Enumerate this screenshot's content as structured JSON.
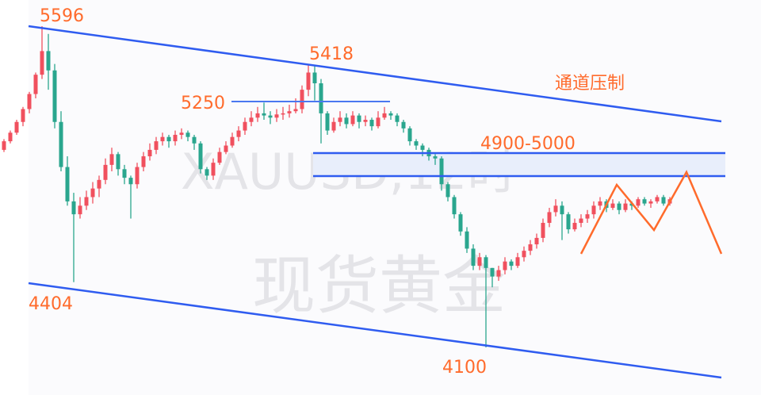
{
  "chart_data": {
    "type": "candlestick",
    "symbol_watermark": "XAUUSD,12时",
    "name_watermark": "现货黄金",
    "colors": {
      "up": "#f0505e",
      "down": "#2aa68e",
      "channel": "#2f5cf0",
      "annotation": "#ff6b2c",
      "zone_fill": "#e8eefb"
    },
    "price_range": [
      4100,
      5596
    ],
    "candles": [
      [
        5020,
        5070,
        5010,
        5060
      ],
      [
        5060,
        5110,
        5050,
        5100
      ],
      [
        5100,
        5160,
        5090,
        5150
      ],
      [
        5150,
        5220,
        5130,
        5210
      ],
      [
        5210,
        5290,
        5190,
        5280
      ],
      [
        5280,
        5380,
        5260,
        5370
      ],
      [
        5370,
        5596,
        5350,
        5480
      ],
      [
        5480,
        5560,
        5300,
        5390
      ],
      [
        5390,
        5420,
        5120,
        5150
      ],
      [
        5150,
        5200,
        4920,
        4940
      ],
      [
        4940,
        4990,
        4760,
        4780
      ],
      [
        4780,
        4820,
        4404,
        4720
      ],
      [
        4720,
        4800,
        4700,
        4760
      ],
      [
        4760,
        4830,
        4740,
        4800
      ],
      [
        4800,
        4870,
        4770,
        4840
      ],
      [
        4840,
        4900,
        4800,
        4880
      ],
      [
        4880,
        4980,
        4860,
        4950
      ],
      [
        4950,
        5030,
        4920,
        5000
      ],
      [
        5000,
        5010,
        4900,
        4930
      ],
      [
        4930,
        4950,
        4860,
        4890
      ],
      [
        4890,
        4900,
        4700,
        4860
      ],
      [
        4860,
        4960,
        4840,
        4940
      ],
      [
        4940,
        5010,
        4920,
        4990
      ],
      [
        4990,
        5050,
        4970,
        5020
      ],
      [
        5020,
        5080,
        5000,
        5060
      ],
      [
        5060,
        5100,
        5040,
        5080
      ],
      [
        5080,
        5090,
        5030,
        5060
      ],
      [
        5060,
        5110,
        5040,
        5090
      ],
      [
        5090,
        5120,
        5070,
        5100
      ],
      [
        5100,
        5110,
        5060,
        5080
      ],
      [
        5080,
        5090,
        5020,
        5050
      ],
      [
        5050,
        5060,
        4910,
        4930
      ],
      [
        4930,
        4940,
        4880,
        4900
      ],
      [
        4900,
        4980,
        4880,
        4960
      ],
      [
        4960,
        5030,
        4950,
        5010
      ],
      [
        5010,
        5060,
        5000,
        5040
      ],
      [
        5040,
        5100,
        5030,
        5080
      ],
      [
        5080,
        5130,
        5060,
        5110
      ],
      [
        5110,
        5170,
        5090,
        5150
      ],
      [
        5150,
        5200,
        5130,
        5170
      ],
      [
        5170,
        5220,
        5150,
        5190
      ],
      [
        5190,
        5240,
        5160,
        5180
      ],
      [
        5180,
        5200,
        5140,
        5170
      ],
      [
        5170,
        5210,
        5150,
        5185
      ],
      [
        5185,
        5220,
        5160,
        5190
      ],
      [
        5190,
        5230,
        5170,
        5200
      ],
      [
        5200,
        5260,
        5190,
        5210
      ],
      [
        5210,
        5320,
        5190,
        5300
      ],
      [
        5300,
        5418,
        5270,
        5380
      ],
      [
        5380,
        5410,
        5250,
        5330
      ],
      [
        5330,
        5350,
        5050,
        5190
      ],
      [
        5190,
        5200,
        5090,
        5110
      ],
      [
        5110,
        5170,
        5100,
        5150
      ],
      [
        5150,
        5200,
        5130,
        5170
      ],
      [
        5170,
        5190,
        5120,
        5140
      ],
      [
        5140,
        5200,
        5130,
        5180
      ],
      [
        5180,
        5190,
        5120,
        5150
      ],
      [
        5150,
        5180,
        5130,
        5160
      ],
      [
        5160,
        5170,
        5110,
        5130
      ],
      [
        5130,
        5200,
        5120,
        5170
      ],
      [
        5170,
        5220,
        5160,
        5190
      ],
      [
        5190,
        5200,
        5160,
        5180
      ],
      [
        5180,
        5190,
        5130,
        5150
      ],
      [
        5150,
        5160,
        5100,
        5120
      ],
      [
        5120,
        5130,
        5040,
        5060
      ],
      [
        5060,
        5070,
        5020,
        5040
      ],
      [
        5040,
        5050,
        4990,
        5020
      ],
      [
        5020,
        5030,
        4970,
        4990
      ],
      [
        4990,
        5000,
        4950,
        4980
      ],
      [
        4980,
        4990,
        4830,
        4860
      ],
      [
        4860,
        4870,
        4780,
        4800
      ],
      [
        4800,
        4810,
        4700,
        4720
      ],
      [
        4720,
        4730,
        4620,
        4640
      ],
      [
        4640,
        4660,
        4540,
        4560
      ],
      [
        4560,
        4580,
        4460,
        4480
      ],
      [
        4480,
        4540,
        4460,
        4520
      ],
      [
        4520,
        4530,
        4100,
        4470
      ],
      [
        4470,
        4470,
        4380,
        4430
      ],
      [
        4430,
        4480,
        4410,
        4460
      ],
      [
        4460,
        4520,
        4440,
        4500
      ],
      [
        4500,
        4510,
        4460,
        4480
      ],
      [
        4480,
        4540,
        4470,
        4520
      ],
      [
        4520,
        4570,
        4500,
        4550
      ],
      [
        4550,
        4600,
        4530,
        4580
      ],
      [
        4580,
        4630,
        4560,
        4610
      ],
      [
        4610,
        4700,
        4590,
        4680
      ],
      [
        4680,
        4750,
        4660,
        4730
      ],
      [
        4730,
        4790,
        4710,
        4760
      ],
      [
        4760,
        4780,
        4600,
        4720
      ],
      [
        4720,
        4730,
        4630,
        4650
      ],
      [
        4650,
        4700,
        4640,
        4680
      ],
      [
        4680,
        4720,
        4660,
        4700
      ],
      [
        4700,
        4740,
        4680,
        4720
      ],
      [
        4720,
        4780,
        4700,
        4760
      ],
      [
        4760,
        4800,
        4740,
        4780
      ],
      [
        4780,
        4790,
        4730,
        4750
      ],
      [
        4750,
        4790,
        4740,
        4770
      ],
      [
        4770,
        4780,
        4720,
        4740
      ],
      [
        4740,
        4790,
        4730,
        4770
      ],
      [
        4770,
        4780,
        4740,
        4760
      ],
      [
        4760,
        4800,
        4750,
        4790
      ],
      [
        4790,
        4800,
        4760,
        4770
      ],
      [
        4770,
        4790,
        4750,
        4780
      ],
      [
        4780,
        4810,
        4770,
        4800
      ],
      [
        4800,
        4810,
        4760,
        4770
      ],
      [
        4770,
        4800,
        4760,
        4790
      ]
    ],
    "annotations": {
      "high": "5596",
      "lower_high": "5418",
      "resistance": "5250",
      "low_left": "4404",
      "low": "4100",
      "zone": "4900-5000",
      "channel": "通道压制"
    },
    "levels": {
      "zone": [
        4900,
        5000
      ],
      "resistance": 5250
    }
  }
}
